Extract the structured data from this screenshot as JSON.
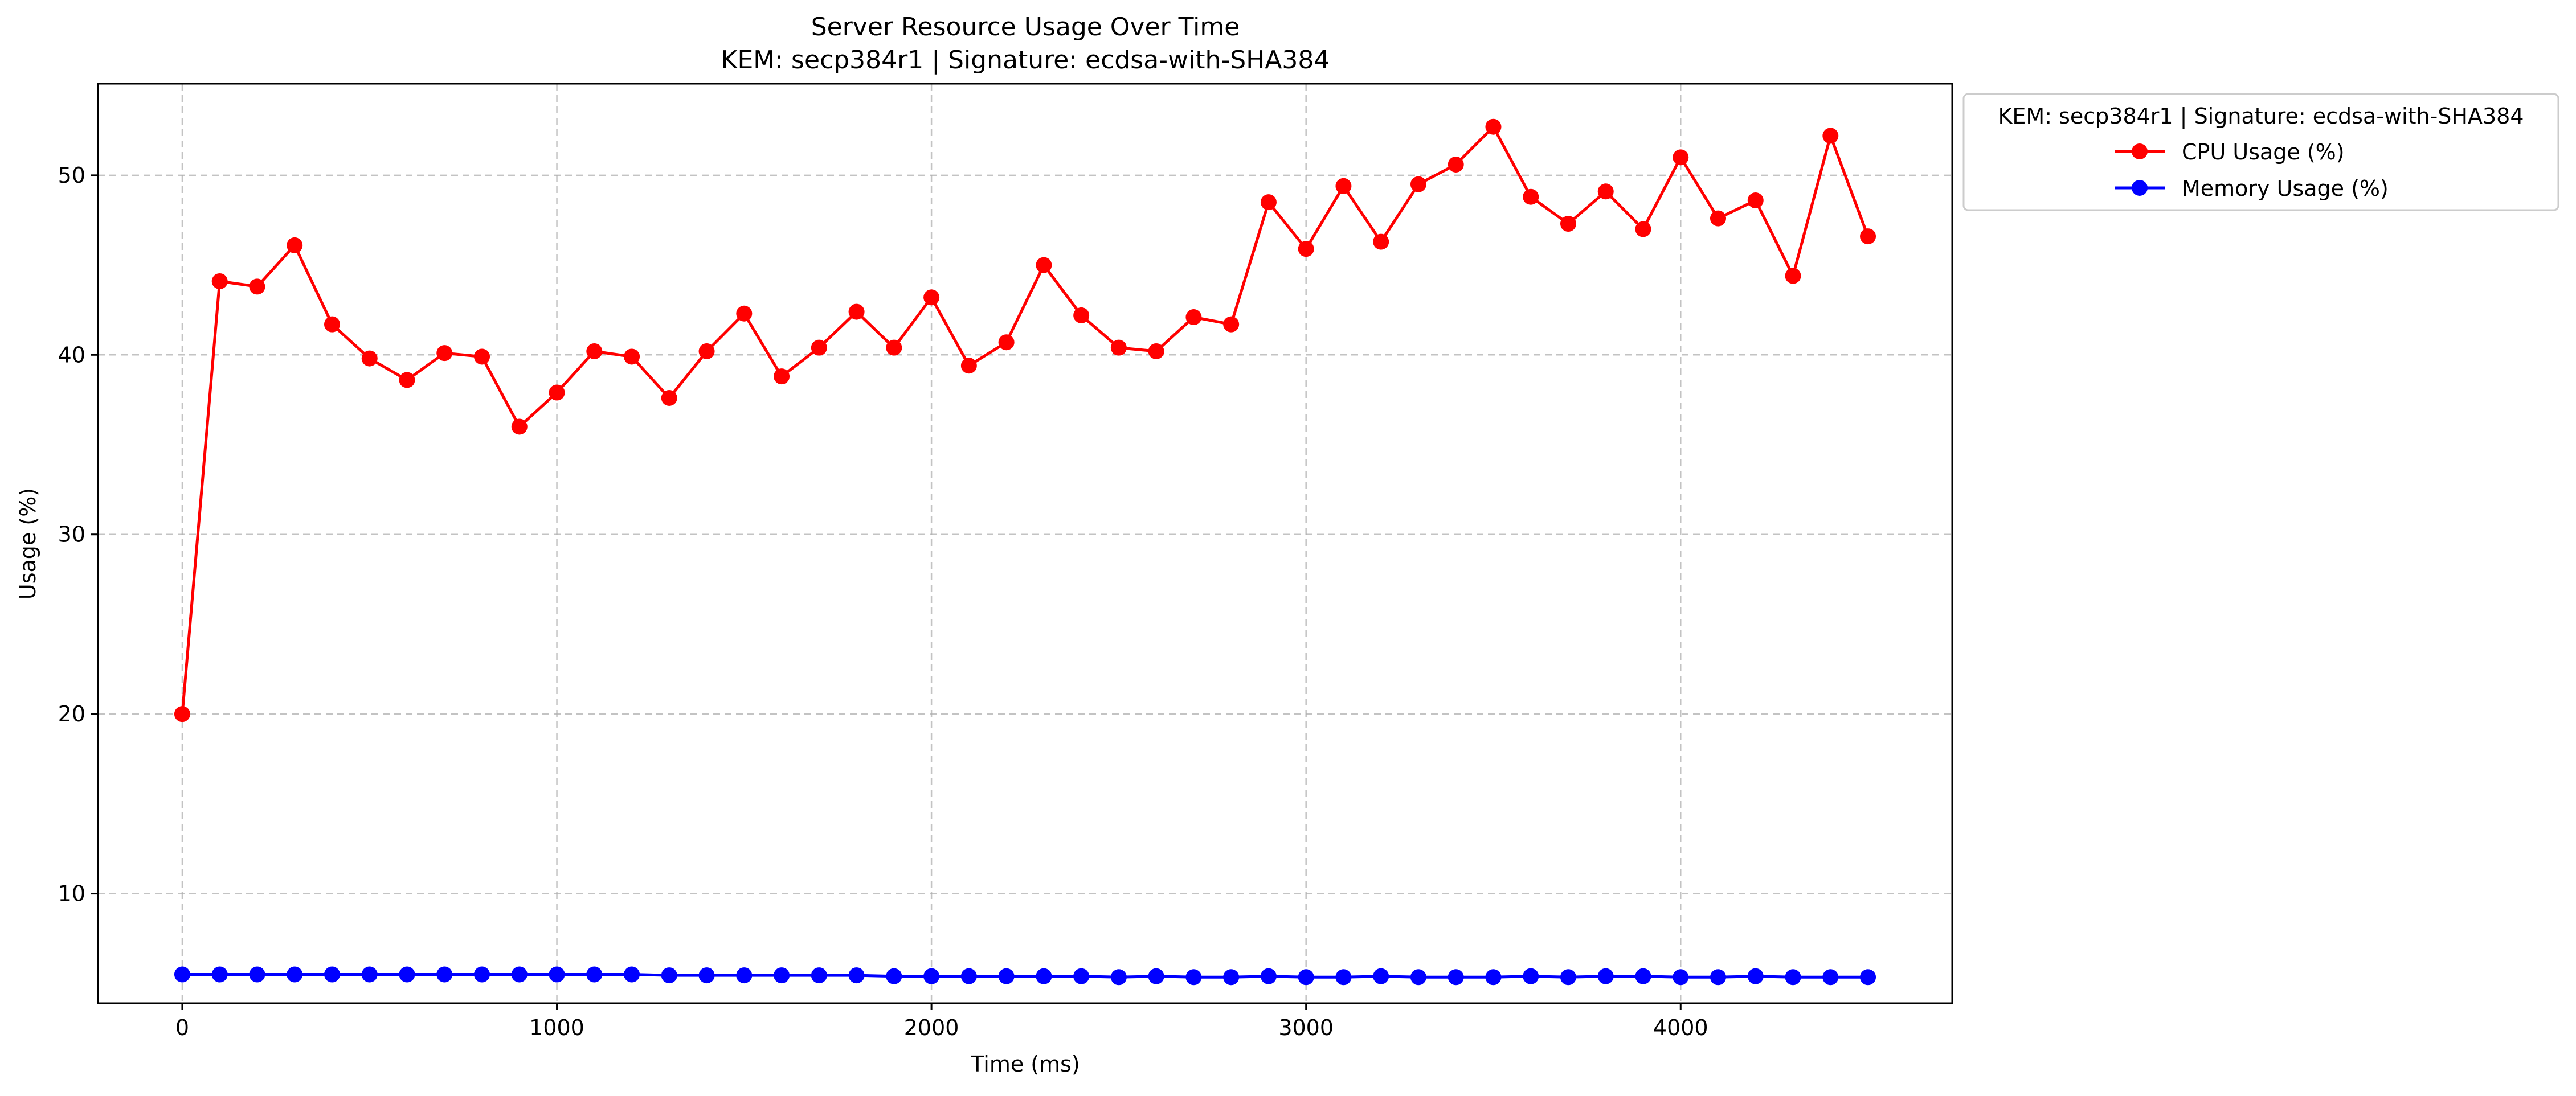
{
  "chart_data": {
    "type": "line",
    "title": "Server Resource Usage Over Time",
    "subtitle": "KEM: secp384r1 | Signature: ecdsa-with-SHA384",
    "xlabel": "Time (ms)",
    "ylabel": "Usage (%)",
    "xlim": [
      -225,
      4725
    ],
    "ylim": [
      3.9,
      55.1
    ],
    "xticks": [
      0,
      1000,
      2000,
      3000,
      4000
    ],
    "yticks": [
      10,
      20,
      30,
      40,
      50
    ],
    "grid": true,
    "legend": {
      "title": "KEM: secp384r1 | Signature: ecdsa-with-SHA384",
      "placement": "outside top-right"
    },
    "x": [
      0,
      100,
      200,
      300,
      400,
      500,
      600,
      700,
      800,
      900,
      1000,
      1100,
      1200,
      1300,
      1400,
      1500,
      1600,
      1700,
      1800,
      1900,
      2000,
      2100,
      2200,
      2300,
      2400,
      2500,
      2600,
      2700,
      2800,
      2900,
      3000,
      3100,
      3200,
      3300,
      3400,
      3500,
      3600,
      3700,
      3800,
      3900,
      4000,
      4100,
      4200,
      4300,
      4400,
      4500
    ],
    "series": [
      {
        "name": "CPU Usage (%)",
        "color": "#ff0000",
        "values": [
          20.0,
          44.1,
          43.8,
          46.1,
          41.7,
          39.8,
          38.6,
          40.1,
          39.9,
          36.0,
          37.9,
          40.2,
          39.9,
          37.6,
          40.2,
          42.3,
          38.8,
          40.4,
          42.4,
          40.4,
          43.2,
          39.4,
          40.7,
          45.0,
          42.2,
          40.4,
          40.2,
          42.1,
          41.7,
          48.5,
          45.9,
          49.4,
          46.3,
          49.5,
          50.6,
          52.7,
          48.8,
          47.3,
          49.1,
          47.0,
          51.0,
          47.6,
          48.6,
          44.4,
          52.2,
          46.6
        ]
      },
      {
        "name": "Memory Usage (%)",
        "color": "#0000ff",
        "values": [
          5.5,
          5.5,
          5.5,
          5.5,
          5.5,
          5.5,
          5.5,
          5.5,
          5.5,
          5.5,
          5.5,
          5.5,
          5.5,
          5.45,
          5.45,
          5.45,
          5.45,
          5.45,
          5.45,
          5.4,
          5.4,
          5.4,
          5.4,
          5.4,
          5.4,
          5.35,
          5.4,
          5.35,
          5.35,
          5.4,
          5.35,
          5.35,
          5.4,
          5.35,
          5.35,
          5.35,
          5.4,
          5.35,
          5.4,
          5.4,
          5.35,
          5.35,
          5.4,
          5.35,
          5.35,
          5.35
        ]
      }
    ]
  }
}
